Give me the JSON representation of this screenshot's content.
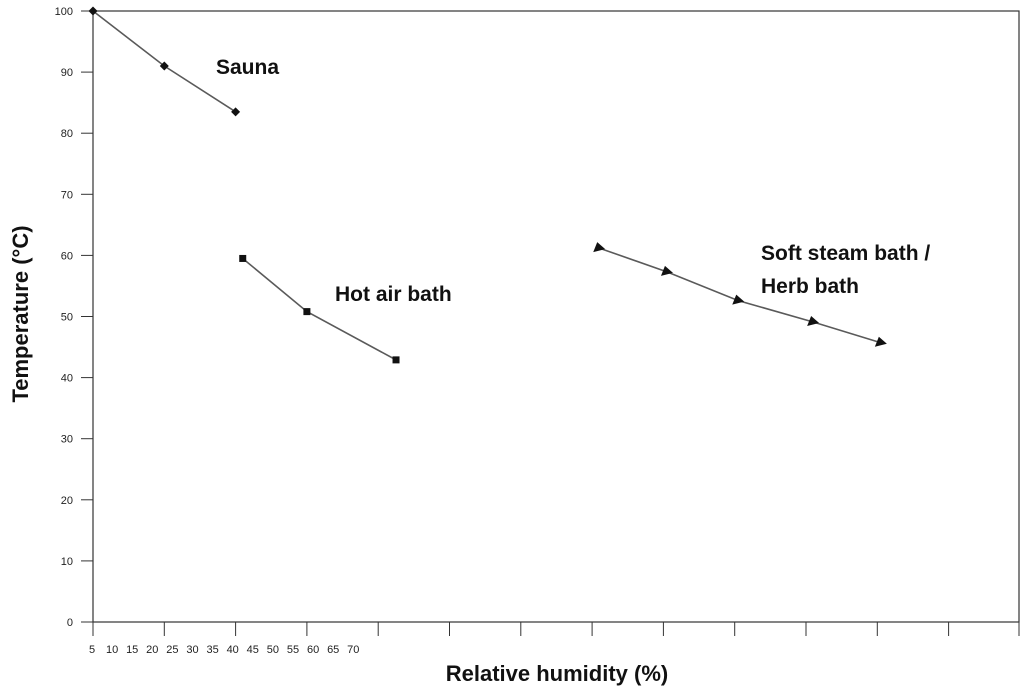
{
  "chart_data": {
    "type": "line",
    "title": "",
    "xlabel": "Relative humidity (%)",
    "ylabel": "Temperature (°C)",
    "ylim": [
      0,
      100
    ],
    "y_ticks": [
      0,
      10,
      20,
      30,
      40,
      50,
      60,
      70,
      80,
      90,
      100
    ],
    "x_tick_labels": [
      "5",
      "10",
      "15",
      "20",
      "25",
      "30",
      "35",
      "40",
      "45",
      "50",
      "55",
      "60",
      "65",
      "70"
    ],
    "grid": false,
    "series": [
      {
        "name": "Sauna",
        "marker": "diamond",
        "x": [
          5,
          25,
          45
        ],
        "y": [
          100,
          91,
          83.5
        ]
      },
      {
        "name": "Hot air bath",
        "marker": "square",
        "x": [
          47,
          65,
          90
        ],
        "y": [
          59.5,
          50.8,
          42.9
        ]
      },
      {
        "name": "Soft steam bath / Herb bath",
        "label_lines": [
          "Soft steam bath /",
          "Herb bath"
        ],
        "marker": "triangle",
        "x": [
          147,
          166,
          186,
          207,
          226
        ],
        "y": [
          61.2,
          57.3,
          52.6,
          49.1,
          45.7
        ]
      }
    ],
    "colors": {
      "line": "#5a5a5a",
      "marker": "#111111",
      "axis": "#333333"
    }
  }
}
